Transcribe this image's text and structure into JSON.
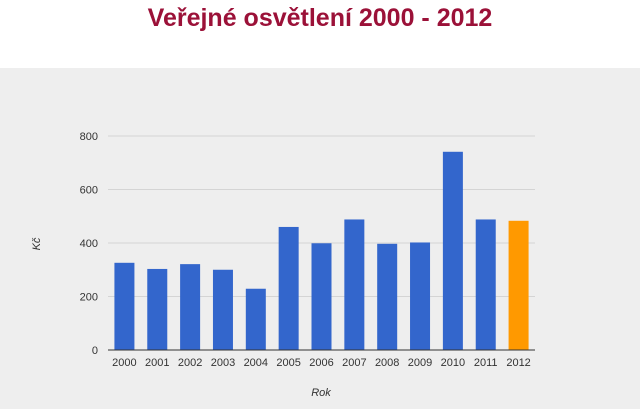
{
  "chart_data": {
    "type": "bar",
    "title": "Veřejné osvětlení 2000 - 2012",
    "xlabel": "Rok",
    "ylabel": "Kč",
    "ylim": [
      0,
      800
    ],
    "yticks": [
      0,
      200,
      400,
      600,
      800
    ],
    "grid": true,
    "categories": [
      "2000",
      "2001",
      "2002",
      "2003",
      "2004",
      "2005",
      "2006",
      "2007",
      "2008",
      "2009",
      "2010",
      "2011",
      "2012"
    ],
    "values": [
      326,
      303,
      321,
      300,
      229,
      460,
      399,
      488,
      397,
      402,
      741,
      488,
      483
    ],
    "colors": {
      "default": "#3366cc",
      "highlight": "#ff9900"
    },
    "highlight_category": "2012"
  }
}
